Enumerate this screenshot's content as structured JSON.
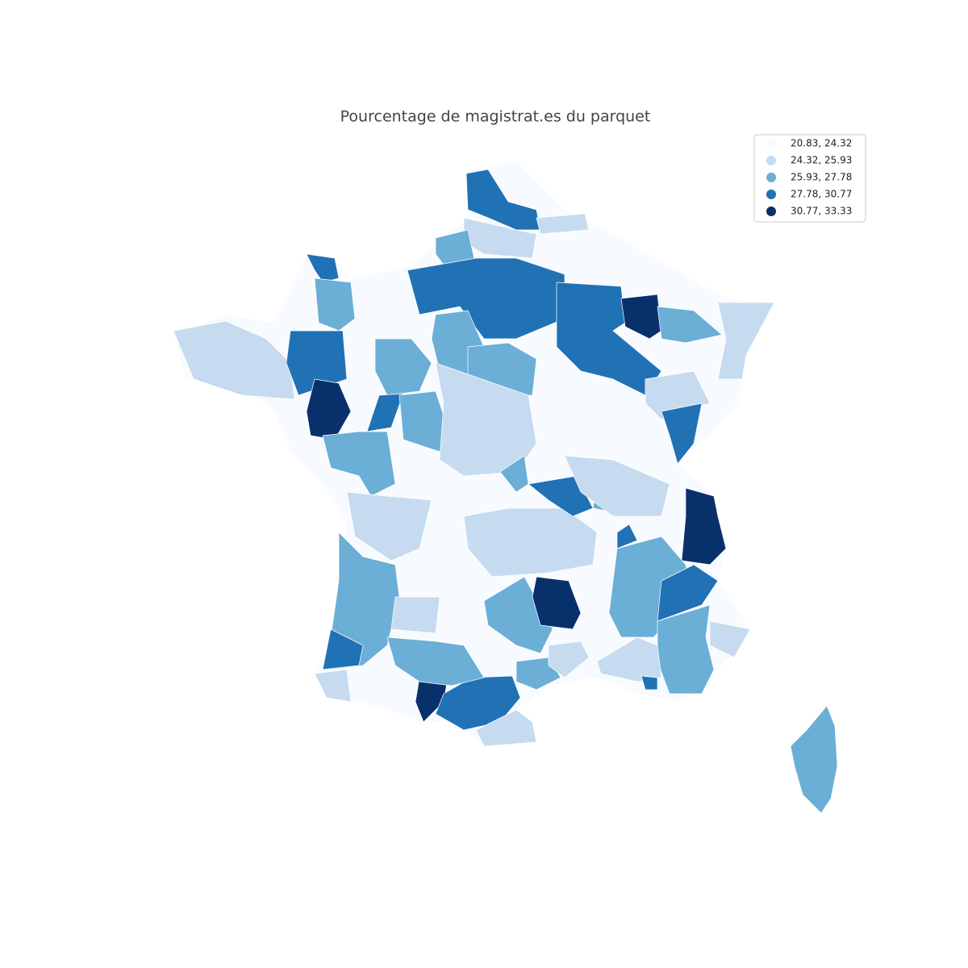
{
  "title": "Pourcentage de magistrat.es du parquet",
  "legend": {
    "items": [
      {
        "label": "20.83, 24.32",
        "color": "#f7fbff"
      },
      {
        "label": "24.32, 25.93",
        "color": "#c6dbef"
      },
      {
        "label": "25.93, 27.78",
        "color": "#6baed6"
      },
      {
        "label": "27.78, 30.77",
        "color": "#2171b5"
      },
      {
        "label": "30.77, 33.33",
        "color": "#08306b"
      }
    ]
  }
}
